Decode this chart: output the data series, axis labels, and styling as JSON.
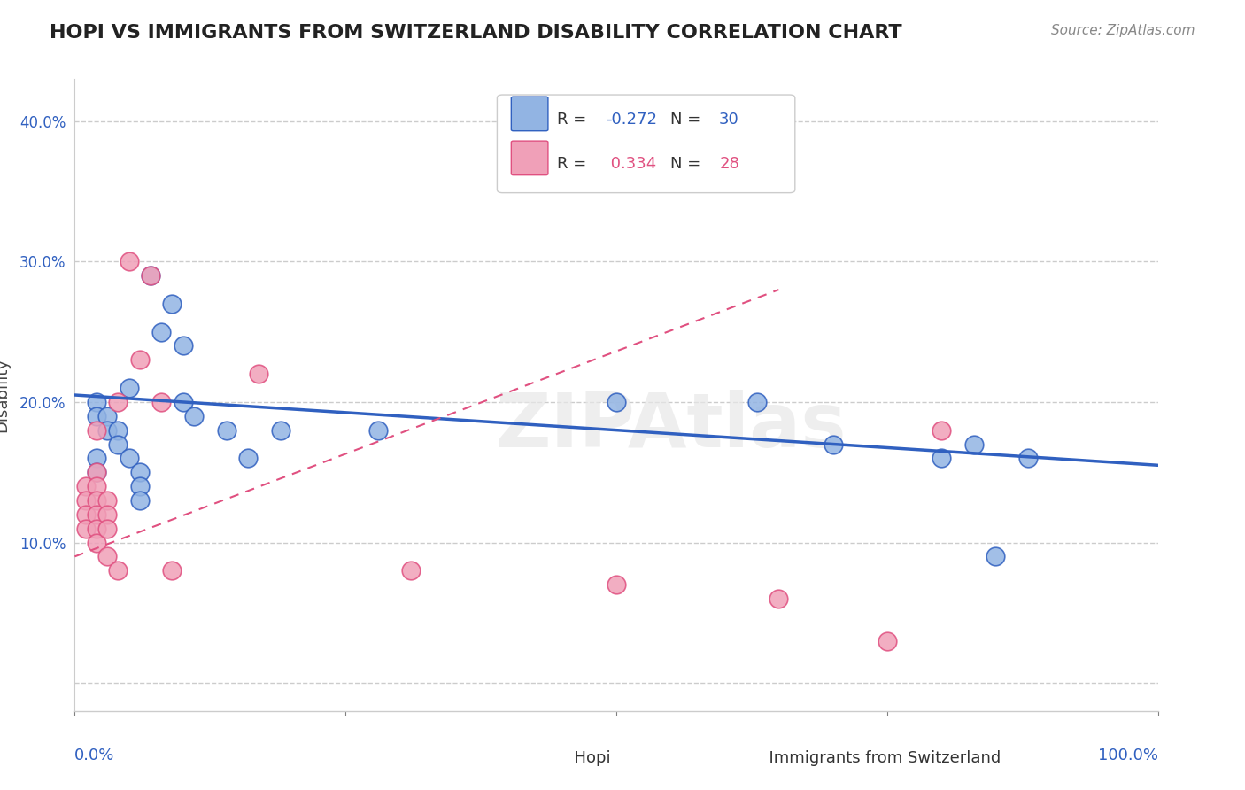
{
  "title": "HOPI VS IMMIGRANTS FROM SWITZERLAND DISABILITY CORRELATION CHART",
  "source": "Source: ZipAtlas.com",
  "ylabel": "Disability",
  "yticks": [
    0.0,
    0.1,
    0.2,
    0.3,
    0.4
  ],
  "ytick_labels": [
    "",
    "10.0%",
    "20.0%",
    "30.0%",
    "40.0%"
  ],
  "xlim": [
    0.0,
    1.0
  ],
  "ylim": [
    -0.02,
    0.43
  ],
  "legend_r_blue": "-0.272",
  "legend_n_blue": "30",
  "legend_r_pink": "0.334",
  "legend_n_pink": "28",
  "watermark": "ZIPAtlas",
  "blue_color": "#92b4e3",
  "pink_color": "#f0a0b8",
  "blue_line_color": "#3060c0",
  "pink_line_color": "#e05080",
  "blue_scatter_x": [
    0.02,
    0.02,
    0.02,
    0.02,
    0.03,
    0.03,
    0.04,
    0.04,
    0.05,
    0.05,
    0.06,
    0.06,
    0.06,
    0.07,
    0.08,
    0.09,
    0.1,
    0.1,
    0.11,
    0.14,
    0.16,
    0.19,
    0.28,
    0.5,
    0.63,
    0.7,
    0.8,
    0.83,
    0.85,
    0.88
  ],
  "blue_scatter_y": [
    0.2,
    0.19,
    0.16,
    0.15,
    0.19,
    0.18,
    0.18,
    0.17,
    0.21,
    0.16,
    0.15,
    0.14,
    0.13,
    0.29,
    0.25,
    0.27,
    0.24,
    0.2,
    0.19,
    0.18,
    0.16,
    0.18,
    0.18,
    0.2,
    0.2,
    0.17,
    0.16,
    0.17,
    0.09,
    0.16
  ],
  "pink_scatter_x": [
    0.01,
    0.01,
    0.01,
    0.01,
    0.02,
    0.02,
    0.02,
    0.02,
    0.02,
    0.02,
    0.02,
    0.03,
    0.03,
    0.03,
    0.03,
    0.04,
    0.04,
    0.05,
    0.06,
    0.07,
    0.08,
    0.09,
    0.17,
    0.31,
    0.5,
    0.65,
    0.75,
    0.8
  ],
  "pink_scatter_y": [
    0.14,
    0.13,
    0.12,
    0.11,
    0.18,
    0.15,
    0.14,
    0.13,
    0.12,
    0.11,
    0.1,
    0.13,
    0.12,
    0.11,
    0.09,
    0.2,
    0.08,
    0.3,
    0.23,
    0.29,
    0.2,
    0.08,
    0.22,
    0.08,
    0.07,
    0.06,
    0.03,
    0.18
  ],
  "blue_trend_x": [
    0.0,
    1.0
  ],
  "blue_trend_y": [
    0.205,
    0.155
  ],
  "pink_trend_x": [
    0.0,
    0.65
  ],
  "pink_trend_y": [
    0.09,
    0.28
  ]
}
